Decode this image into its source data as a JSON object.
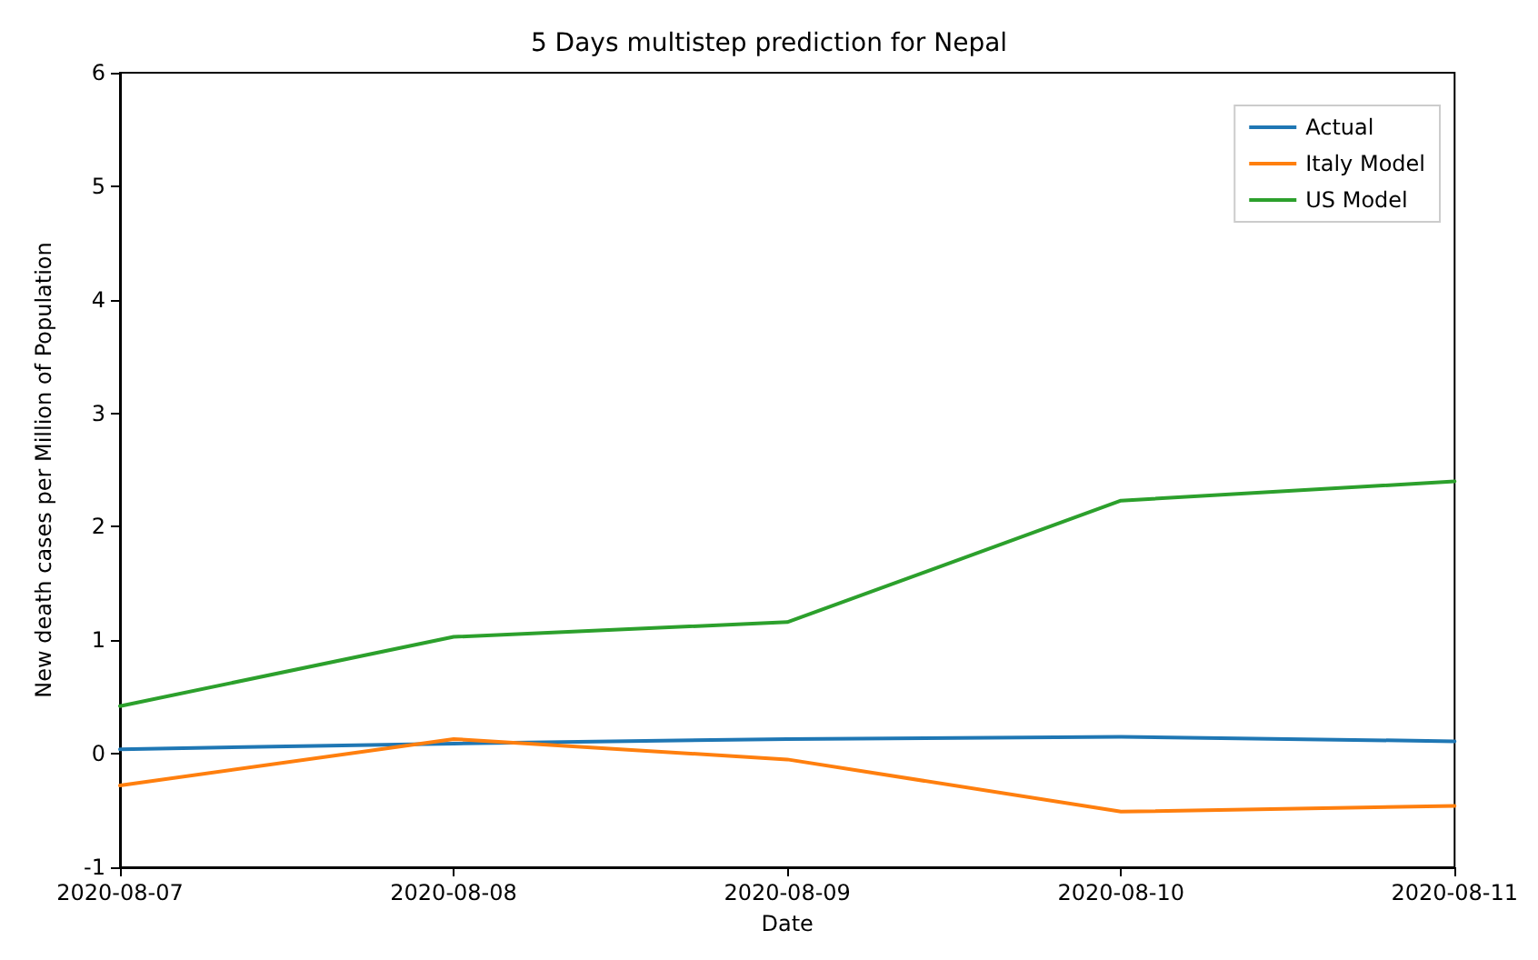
{
  "chart_data": {
    "type": "line",
    "title": "5 Days multistep prediction for Nepal",
    "xlabel": "Date",
    "ylabel": "New death cases per Million of Population",
    "categories": [
      "2020-08-07",
      "2020-08-08",
      "2020-08-09",
      "2020-08-10",
      "2020-08-11"
    ],
    "series": [
      {
        "name": "Actual",
        "color": "#1f77b4",
        "values": [
          0.04,
          0.09,
          0.13,
          0.15,
          0.11
        ]
      },
      {
        "name": "Italy Model",
        "color": "#ff7f0e",
        "values": [
          -0.28,
          0.13,
          -0.05,
          -0.51,
          -0.46
        ]
      },
      {
        "name": "US Model",
        "color": "#2ca02c",
        "values": [
          0.42,
          1.03,
          1.16,
          2.23,
          2.4
        ]
      }
    ],
    "ylim": [
      -1,
      6
    ],
    "yticks": [
      -1,
      0,
      1,
      2,
      3,
      4,
      5,
      6
    ],
    "grid": false,
    "legend": "top right",
    "marker": "none",
    "line_style": "solid"
  }
}
